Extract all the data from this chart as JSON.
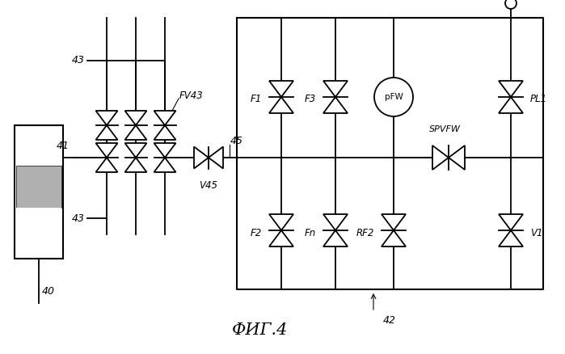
{
  "title": "ФИГ.4",
  "bg_color": "#ffffff",
  "line_color": "#000000",
  "labels": {
    "43_top": "43",
    "43_bot": "43",
    "41": "41",
    "FV43": "FV43",
    "V45": "V45",
    "45": "45",
    "40": "40",
    "42": "42",
    "F1": "F1",
    "F2": "F2",
    "F3": "F3",
    "Fn": "Fn",
    "RF2": "RF2",
    "pFW": "pFW",
    "SPVFW": "SPVFW",
    "PL1": "PL1",
    "V1": "V1"
  }
}
